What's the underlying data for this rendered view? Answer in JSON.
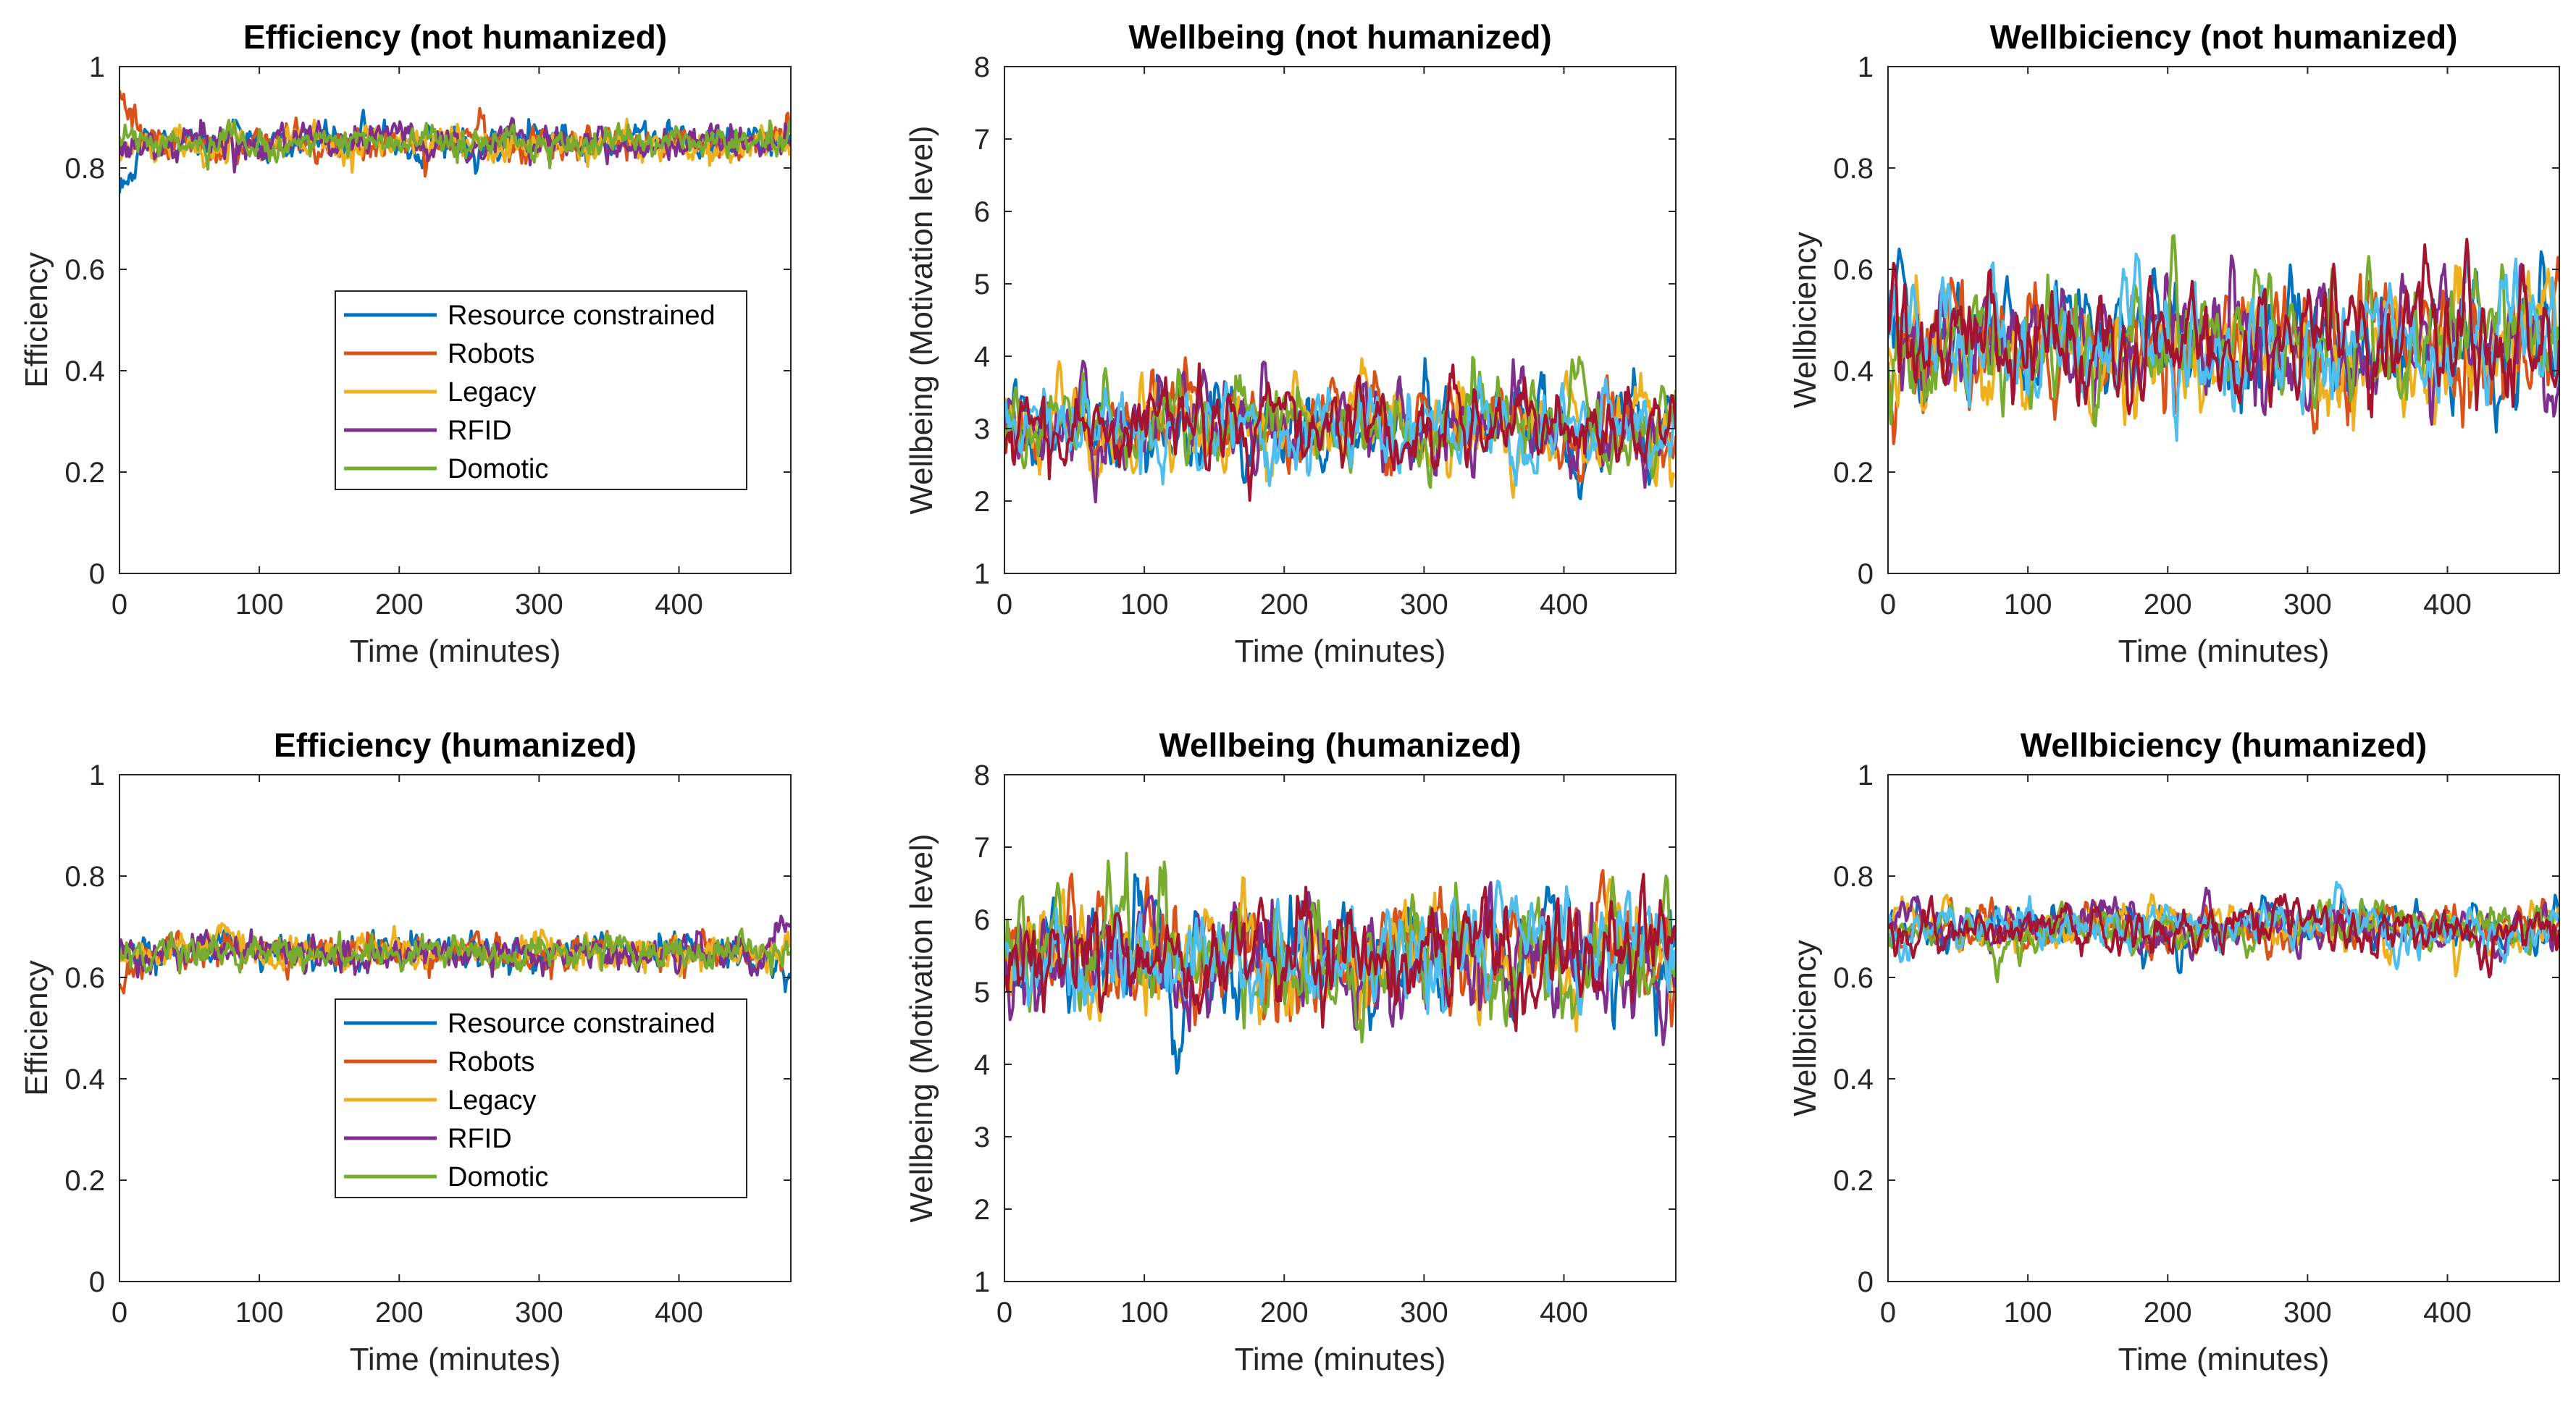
{
  "colors": {
    "series": [
      "#0072BD",
      "#D95319",
      "#EDB120",
      "#7E2F8E",
      "#77AC30",
      "#4DBEEE",
      "#A2142F"
    ],
    "axis": "#262626",
    "text": "#000000"
  },
  "legend_entries": [
    "Resource constrained",
    "Robots",
    "Legacy",
    "RFID",
    "Domotic"
  ],
  "chart_data": [
    {
      "type": "line",
      "title": "Efficiency (not humanized)",
      "xlabel": "Time (minutes)",
      "ylabel": "Efficiency",
      "xlim": [
        0,
        480
      ],
      "ylim": [
        0,
        1
      ],
      "xticks": [
        "0",
        "100",
        "200",
        "300",
        "400"
      ],
      "yticks": [
        "0",
        "0.2",
        "0.4",
        "0.6",
        "0.8",
        "1"
      ],
      "legend": "inside lower-right",
      "series_count": 5,
      "mean": 0.85,
      "noise": 0.025,
      "series": [
        {
          "name": "Resource constrained",
          "values": [
            0.76,
            0.85,
            0.86,
            0.84,
            0.87,
            0.85,
            0.84,
            0.86,
            0.85,
            0.87,
            0.84,
            0.85,
            0.86,
            0.83,
            0.86,
            0.85,
            0.86,
            0.84,
            0.87,
            0.85,
            0.86,
            0.84,
            0.85,
            0.86,
            0.85
          ]
        },
        {
          "name": "Robots",
          "values": [
            0.94,
            0.86,
            0.84,
            0.85,
            0.83,
            0.86,
            0.87,
            0.84,
            0.85,
            0.84,
            0.86,
            0.83,
            0.85,
            0.87,
            0.84,
            0.85,
            0.83,
            0.86,
            0.85,
            0.84,
            0.86,
            0.85,
            0.84,
            0.86,
            0.87
          ]
        },
        {
          "name": "Legacy",
          "values": [
            0.82,
            0.84,
            0.86,
            0.83,
            0.85,
            0.84,
            0.86,
            0.85,
            0.83,
            0.86,
            0.85,
            0.84,
            0.86,
            0.85,
            0.83,
            0.86,
            0.85,
            0.84,
            0.85,
            0.86,
            0.84,
            0.85,
            0.83,
            0.85,
            0.84
          ]
        },
        {
          "name": "RFID",
          "values": [
            0.83,
            0.85,
            0.84,
            0.86,
            0.85,
            0.83,
            0.85,
            0.86,
            0.84,
            0.85,
            0.87,
            0.84,
            0.85,
            0.84,
            0.86,
            0.84,
            0.85,
            0.86,
            0.84,
            0.85,
            0.84,
            0.86,
            0.85,
            0.84,
            0.85
          ]
        },
        {
          "name": "Domotic",
          "values": [
            0.85,
            0.86,
            0.85,
            0.84,
            0.86,
            0.85,
            0.84,
            0.85,
            0.86,
            0.85,
            0.84,
            0.86,
            0.84,
            0.85,
            0.86,
            0.84,
            0.85,
            0.85,
            0.86,
            0.84,
            0.85,
            0.86,
            0.84,
            0.85,
            0.86
          ]
        }
      ]
    },
    {
      "type": "line",
      "title": "Wellbeing (not humanized)",
      "xlabel": "Time (minutes)",
      "ylabel": "Wellbeing (Motivation level)",
      "xlim": [
        0,
        480
      ],
      "ylim": [
        1,
        8
      ],
      "xticks": [
        "0",
        "100",
        "200",
        "300",
        "400"
      ],
      "yticks": [
        "1",
        "2",
        "3",
        "4",
        "5",
        "6",
        "7",
        "8"
      ],
      "series_count": 7,
      "mean": 3.0,
      "noise": 0.38
    },
    {
      "type": "line",
      "title": "Wellbiciency (not humanized)",
      "xlabel": "Time (minutes)",
      "ylabel": "Wellbiciency",
      "xlim": [
        0,
        480
      ],
      "ylim": [
        0,
        1
      ],
      "xticks": [
        "0",
        "100",
        "200",
        "300",
        "400"
      ],
      "yticks": [
        "0",
        "0.2",
        "0.4",
        "0.6",
        "0.8",
        "1"
      ],
      "series_count": 7,
      "mean": 0.45,
      "noise": 0.075
    },
    {
      "type": "line",
      "title": "Efficiency (humanized)",
      "xlabel": "Time (minutes)",
      "ylabel": "Efficiency",
      "xlim": [
        0,
        480
      ],
      "ylim": [
        0,
        1
      ],
      "xticks": [
        "0",
        "100",
        "200",
        "300",
        "400"
      ],
      "yticks": [
        "0",
        "0.2",
        "0.4",
        "0.6",
        "0.8",
        "1"
      ],
      "legend": "inside lower-right",
      "series_count": 5,
      "mean": 0.65,
      "noise": 0.025,
      "series": [
        {
          "name": "Resource constrained",
          "values": [
            0.65,
            0.66,
            0.64,
            0.65,
            0.67,
            0.64,
            0.65,
            0.66,
            0.64,
            0.65,
            0.66,
            0.65,
            0.64,
            0.66,
            0.65,
            0.64,
            0.65,
            0.66,
            0.65,
            0.64,
            0.66,
            0.65,
            0.64,
            0.65,
            0.6
          ]
        },
        {
          "name": "Robots",
          "values": [
            0.58,
            0.65,
            0.66,
            0.64,
            0.65,
            0.66,
            0.64,
            0.65,
            0.64,
            0.66,
            0.65,
            0.64,
            0.65,
            0.66,
            0.64,
            0.65,
            0.64,
            0.66,
            0.65,
            0.64,
            0.65,
            0.66,
            0.64,
            0.65,
            0.66
          ]
        },
        {
          "name": "Legacy",
          "values": [
            0.64,
            0.65,
            0.66,
            0.65,
            0.68,
            0.64,
            0.65,
            0.66,
            0.64,
            0.65,
            0.65,
            0.64,
            0.66,
            0.65,
            0.64,
            0.66,
            0.65,
            0.64,
            0.65,
            0.66,
            0.64,
            0.65,
            0.66,
            0.64,
            0.65
          ]
        },
        {
          "name": "RFID",
          "values": [
            0.66,
            0.64,
            0.65,
            0.66,
            0.64,
            0.65,
            0.66,
            0.64,
            0.65,
            0.63,
            0.65,
            0.66,
            0.64,
            0.65,
            0.66,
            0.64,
            0.65,
            0.66,
            0.64,
            0.65,
            0.64,
            0.66,
            0.65,
            0.64,
            0.72
          ]
        },
        {
          "name": "Domotic",
          "values": [
            0.65,
            0.64,
            0.66,
            0.65,
            0.64,
            0.66,
            0.65,
            0.64,
            0.65,
            0.66,
            0.64,
            0.65,
            0.66,
            0.64,
            0.65,
            0.66,
            0.64,
            0.65,
            0.66,
            0.64,
            0.65,
            0.64,
            0.66,
            0.65,
            0.64
          ]
        }
      ]
    },
    {
      "type": "line",
      "title": "Wellbeing (humanized)",
      "xlabel": "Time (minutes)",
      "ylabel": "Wellbeing (Motivation level)",
      "xlim": [
        0,
        480
      ],
      "ylim": [
        1,
        8
      ],
      "xticks": [
        "0",
        "100",
        "200",
        "300",
        "400"
      ],
      "yticks": [
        "1",
        "2",
        "3",
        "4",
        "5",
        "6",
        "7",
        "8"
      ],
      "series_count": 7,
      "mean": 5.5,
      "noise": 0.5
    },
    {
      "type": "line",
      "title": "Wellbiciency (humanized)",
      "xlabel": "Time (minutes)",
      "ylabel": "Wellbiciency",
      "xlim": [
        0,
        480
      ],
      "ylim": [
        0,
        1
      ],
      "xticks": [
        "0",
        "100",
        "200",
        "300",
        "400"
      ],
      "yticks": [
        "0",
        "0.2",
        "0.4",
        "0.6",
        "0.8",
        "1"
      ],
      "series_count": 7,
      "mean": 0.7,
      "noise": 0.03
    }
  ]
}
